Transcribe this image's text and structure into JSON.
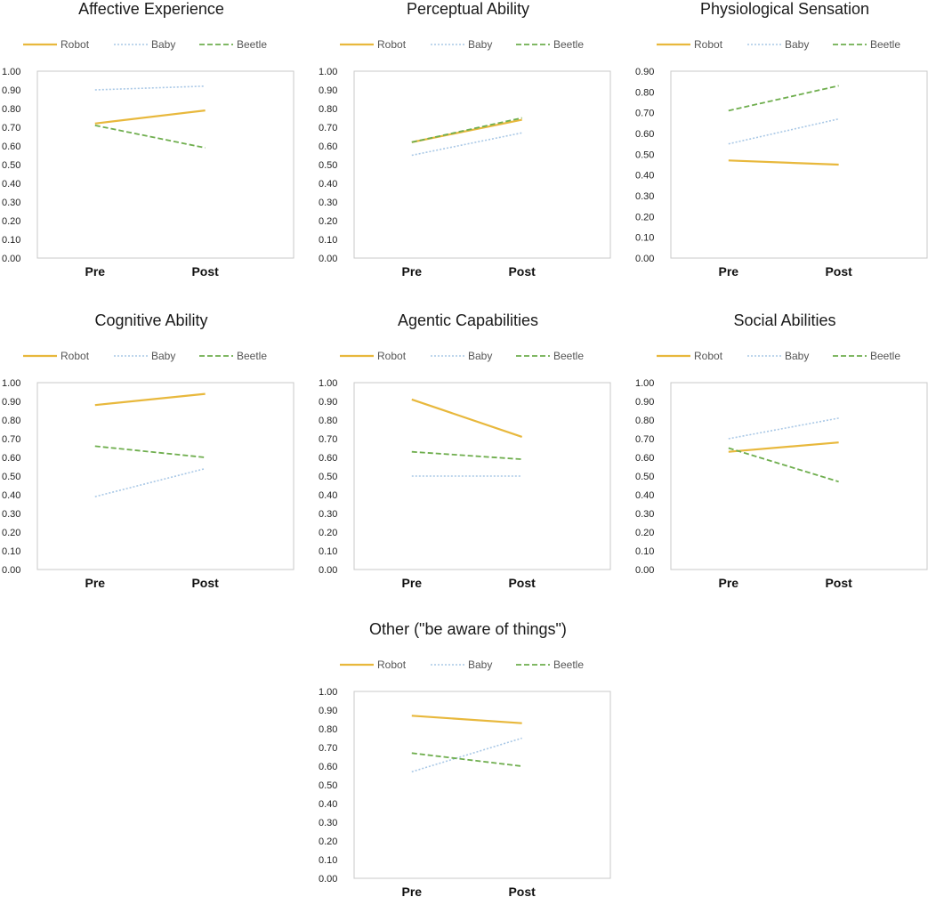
{
  "legend": [
    "Robot",
    "Baby",
    "Beetle"
  ],
  "colors": {
    "Robot": "#E8B83C",
    "Baby": "#A9C8E6",
    "Beetle": "#6FAE4E"
  },
  "chart_data": [
    {
      "type": "line",
      "title": "Affective Experience",
      "categories": [
        "Pre",
        "Post"
      ],
      "ylim": [
        0,
        1
      ],
      "yticks": [
        "0.00",
        "0.10",
        "0.20",
        "0.30",
        "0.40",
        "0.50",
        "0.60",
        "0.70",
        "0.80",
        "0.90",
        "1.00"
      ],
      "series": [
        {
          "name": "Robot",
          "values": [
            0.72,
            0.79
          ]
        },
        {
          "name": "Baby",
          "values": [
            0.9,
            0.92
          ]
        },
        {
          "name": "Beetle",
          "values": [
            0.71,
            0.59
          ]
        }
      ]
    },
    {
      "type": "line",
      "title": "Perceptual Ability",
      "categories": [
        "Pre",
        "Post"
      ],
      "ylim": [
        0,
        1
      ],
      "yticks": [
        "0.00",
        "0.10",
        "0.20",
        "0.30",
        "0.40",
        "0.50",
        "0.60",
        "0.70",
        "0.80",
        "0.90",
        "1.00"
      ],
      "series": [
        {
          "name": "Robot",
          "values": [
            0.62,
            0.74
          ]
        },
        {
          "name": "Baby",
          "values": [
            0.55,
            0.67
          ]
        },
        {
          "name": "Beetle",
          "values": [
            0.62,
            0.75
          ]
        }
      ]
    },
    {
      "type": "line",
      "title": "Physiological Sensation",
      "categories": [
        "Pre",
        "Post"
      ],
      "ylim": [
        0,
        0.9
      ],
      "yticks": [
        "0.00",
        "0.10",
        "0.20",
        "0.30",
        "0.40",
        "0.50",
        "0.60",
        "0.70",
        "0.80",
        "0.90"
      ],
      "series": [
        {
          "name": "Robot",
          "values": [
            0.47,
            0.45
          ]
        },
        {
          "name": "Baby",
          "values": [
            0.55,
            0.67
          ]
        },
        {
          "name": "Beetle",
          "values": [
            0.71,
            0.83
          ]
        }
      ]
    },
    {
      "type": "line",
      "title": "Cognitive Ability",
      "categories": [
        "Pre",
        "Post"
      ],
      "ylim": [
        0,
        1
      ],
      "yticks": [
        "0.00",
        "0.10",
        "0.20",
        "0.30",
        "0.40",
        "0.50",
        "0.60",
        "0.70",
        "0.80",
        "0.90",
        "1.00"
      ],
      "series": [
        {
          "name": "Robot",
          "values": [
            0.88,
            0.94
          ]
        },
        {
          "name": "Baby",
          "values": [
            0.39,
            0.54
          ]
        },
        {
          "name": "Beetle",
          "values": [
            0.66,
            0.6
          ]
        }
      ]
    },
    {
      "type": "line",
      "title": "Agentic Capabilities",
      "categories": [
        "Pre",
        "Post"
      ],
      "ylim": [
        0,
        1
      ],
      "yticks": [
        "0.00",
        "0.10",
        "0.20",
        "0.30",
        "0.40",
        "0.50",
        "0.60",
        "0.70",
        "0.80",
        "0.90",
        "1.00"
      ],
      "series": [
        {
          "name": "Robot",
          "values": [
            0.91,
            0.71
          ]
        },
        {
          "name": "Baby",
          "values": [
            0.5,
            0.5
          ]
        },
        {
          "name": "Beetle",
          "values": [
            0.63,
            0.59
          ]
        }
      ]
    },
    {
      "type": "line",
      "title": "Social Abilities",
      "categories": [
        "Pre",
        "Post"
      ],
      "ylim": [
        0,
        1
      ],
      "yticks": [
        "0.00",
        "0.10",
        "0.20",
        "0.30",
        "0.40",
        "0.50",
        "0.60",
        "0.70",
        "0.80",
        "0.90",
        "1.00"
      ],
      "series": [
        {
          "name": "Robot",
          "values": [
            0.63,
            0.68
          ]
        },
        {
          "name": "Baby",
          "values": [
            0.7,
            0.81
          ]
        },
        {
          "name": "Beetle",
          "values": [
            0.65,
            0.47
          ]
        }
      ]
    },
    {
      "type": "line",
      "title": "Other (\"be aware of things\")",
      "categories": [
        "Pre",
        "Post"
      ],
      "ylim": [
        0,
        1
      ],
      "yticks": [
        "0.00",
        "0.10",
        "0.20",
        "0.30",
        "0.40",
        "0.50",
        "0.60",
        "0.70",
        "0.80",
        "0.90",
        "1.00"
      ],
      "series": [
        {
          "name": "Robot",
          "values": [
            0.87,
            0.83
          ]
        },
        {
          "name": "Baby",
          "values": [
            0.57,
            0.75
          ]
        },
        {
          "name": "Beetle",
          "values": [
            0.67,
            0.6
          ]
        }
      ]
    }
  ]
}
